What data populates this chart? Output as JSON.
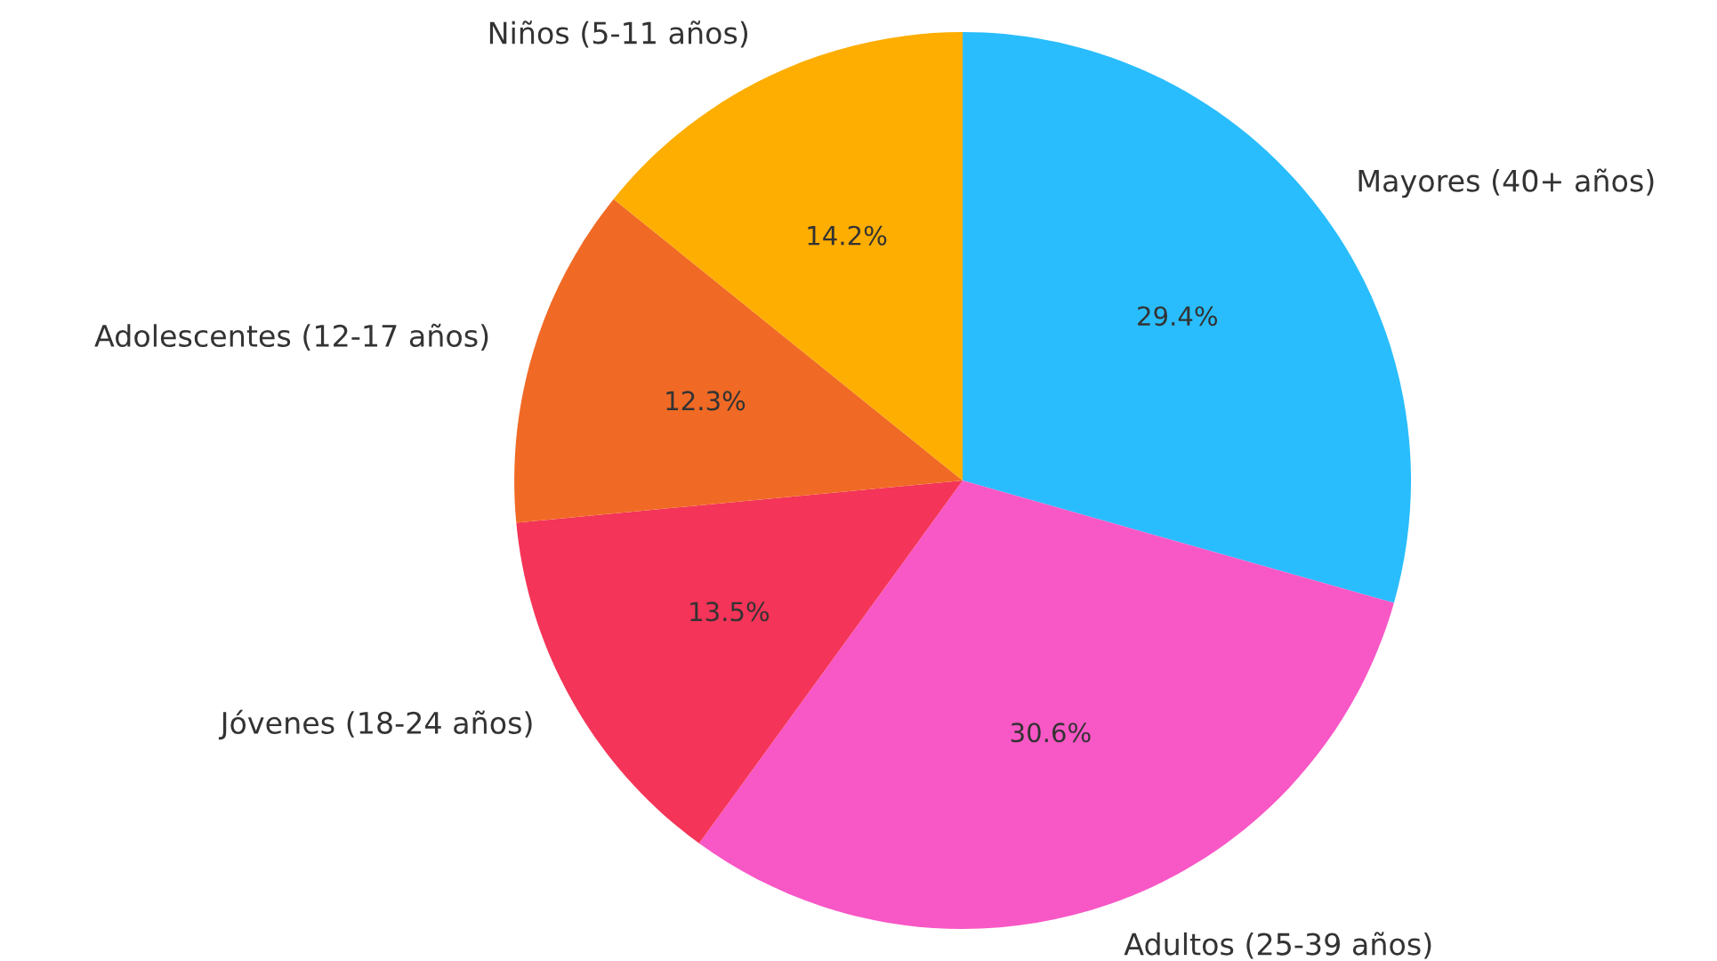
{
  "chart_data": {
    "type": "pie",
    "categories": [
      "Mayores (40+ años)",
      "Adultos (25-39 años)",
      "Jóvenes (18-24 años)",
      "Adolescentes (12-17 años)",
      "Niños (5-11 años)"
    ],
    "values": [
      29.4,
      30.6,
      13.5,
      12.3,
      14.2
    ],
    "colors": [
      "#29bdfd",
      "#f857c6",
      "#f43458",
      "#f06a25",
      "#feae00"
    ],
    "value_labels": [
      "29.4%",
      "30.6%",
      "13.5%",
      "12.3%",
      "14.2%"
    ]
  }
}
